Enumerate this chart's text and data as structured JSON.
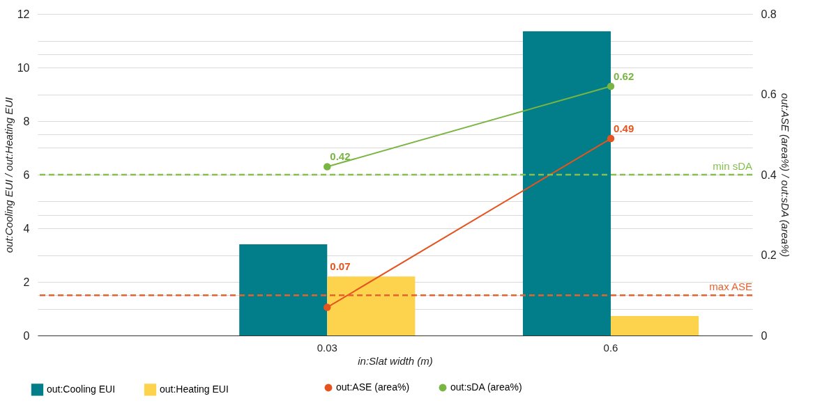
{
  "chart_data": {
    "type": "bar",
    "categories": [
      "0.03",
      "0.6"
    ],
    "xlabel": "in:Slat width (m)",
    "ylabel": "out:Cooling EUI / out:Heating EUI",
    "y2label": "out:ASE (area%) / out:sDA (area%)",
    "series": [
      {
        "name": "out:Cooling EUI",
        "color": "#017e8a",
        "values": [
          3.4,
          11.35
        ]
      },
      {
        "name": "out:Heating EUI",
        "color": "#fdd34e",
        "values": [
          2.2,
          0.73
        ]
      },
      {
        "name": "out:ASE (area%)",
        "type": "line",
        "axis": "y2",
        "color": "#e5531e",
        "values": [
          0.07,
          0.49
        ],
        "value_labels": [
          "0.07",
          "0.49"
        ]
      },
      {
        "name": "out:sDA (area%)",
        "type": "line",
        "axis": "y2",
        "color": "#79b543",
        "values": [
          0.42,
          0.62
        ],
        "value_labels": [
          "0.42",
          "0.62"
        ]
      }
    ],
    "ylim": [
      0,
      12
    ],
    "yticks": [
      0,
      {
        "value": 1,
        "label": null
      },
      2,
      {
        "value": 3,
        "label": null
      },
      4,
      {
        "value": 5,
        "label": null
      },
      6,
      {
        "value": 7,
        "label": null
      },
      8,
      {
        "value": 9,
        "label": null
      },
      10,
      {
        "value": 11,
        "label": null
      },
      12
    ],
    "y2lim": [
      0,
      0.8
    ],
    "y2ticks": [
      0,
      {
        "value": 0.1,
        "label": null
      },
      0.2,
      {
        "value": 0.3,
        "label": null
      },
      0.4,
      {
        "value": 0.5,
        "label": null
      },
      0.6,
      {
        "value": 0.7,
        "label": null
      },
      0.8
    ],
    "ref_lines": [
      {
        "axis": "y2",
        "value": 0.4,
        "label": "min sDA",
        "color": "#84bf4f",
        "line_style": "dashed"
      },
      {
        "axis": "y2",
        "value": 0.1,
        "label": "max ASE",
        "color": "#e8622e",
        "line_style": "dashed"
      }
    ],
    "grid": true,
    "legend": "bottom",
    "marker": "circle",
    "line_style": "solid"
  }
}
